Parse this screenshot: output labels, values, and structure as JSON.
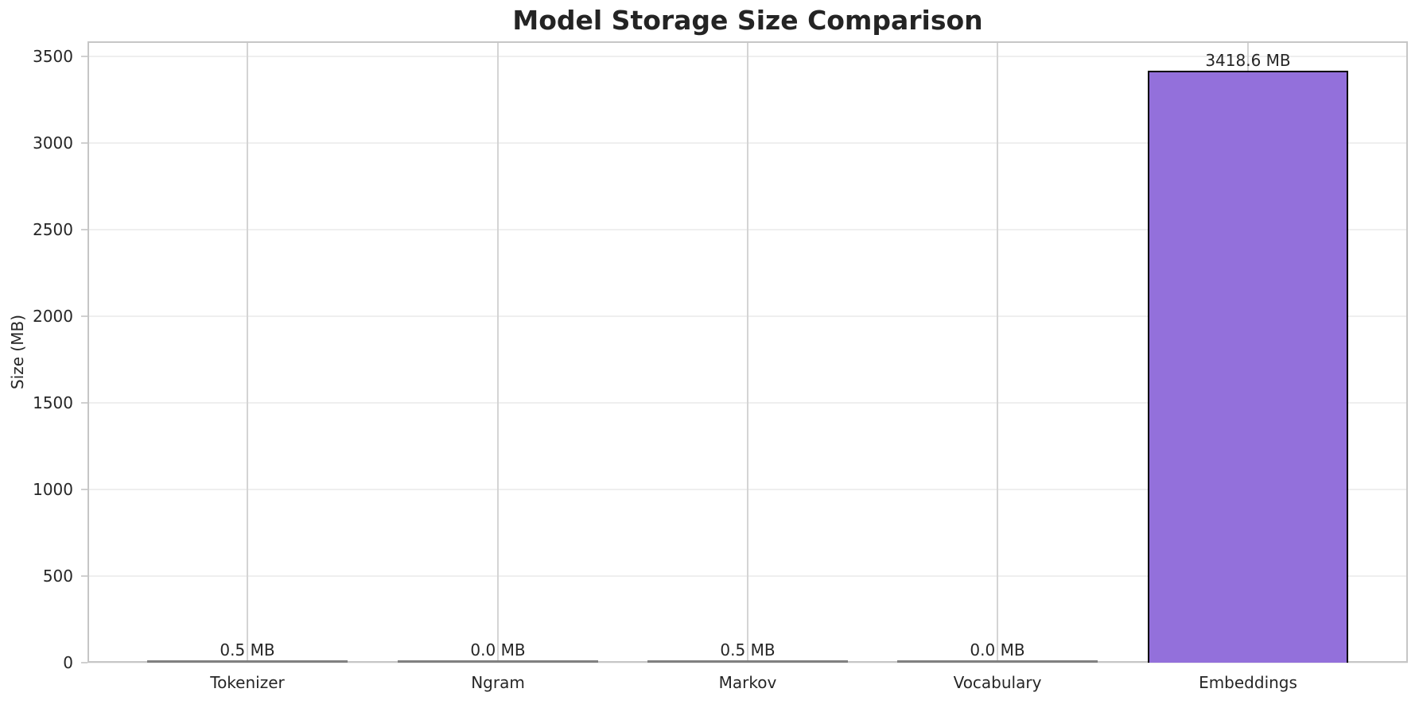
{
  "chart_data": {
    "type": "bar",
    "title": "Model Storage Size Comparison",
    "xlabel": "",
    "ylabel": "Size (MB)",
    "categories": [
      "Tokenizer",
      "Ngram",
      "Markov",
      "Vocabulary",
      "Embeddings"
    ],
    "values": [
      0.5,
      0.0,
      0.5,
      0.0,
      3418.6
    ],
    "value_labels": [
      "0.5 MB",
      "0.0 MB",
      "0.5 MB",
      "0.0 MB",
      "3418.6 MB"
    ],
    "yticks": [
      0,
      500,
      1000,
      1500,
      2000,
      2500,
      3000,
      3500
    ],
    "ytick_labels": [
      "0",
      "500",
      "1000",
      "1500",
      "2000",
      "2500",
      "3000",
      "3500"
    ],
    "ylim": [
      0,
      3589.5
    ],
    "grid": true,
    "legend": false,
    "bar_color": "#9370DB",
    "bar_edge_color": "#000000",
    "grid_color_horizontal": "#efefef",
    "grid_color_vertical": "#d4d4d4",
    "spine_color": "#c6c6c6",
    "text_color": "#262626"
  }
}
